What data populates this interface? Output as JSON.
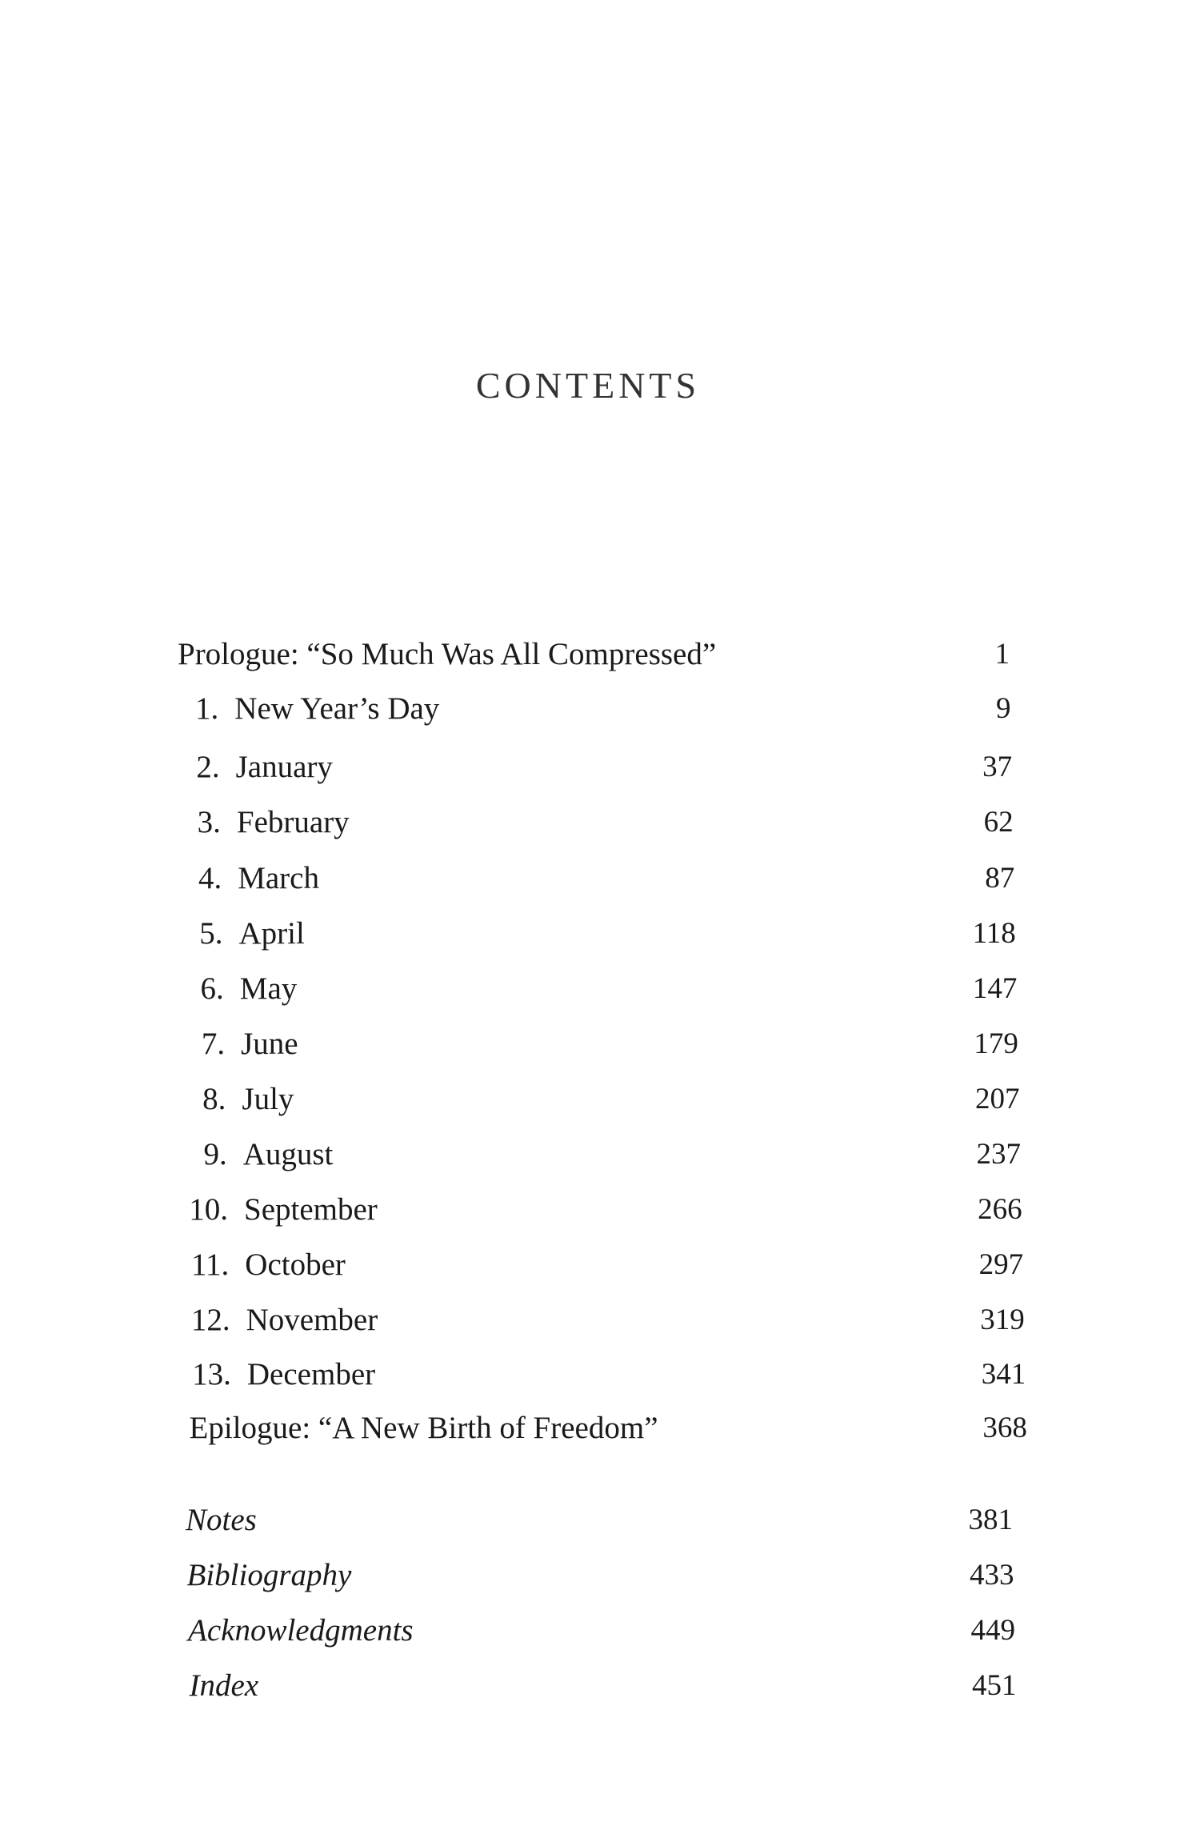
{
  "title": "CONTENTS",
  "entries": [
    {
      "label": "Prologue: “So Much Was All Compressed”",
      "page": "1"
    },
    {
      "number": "1.",
      "label": "New Year’s Day",
      "page": "9"
    },
    {
      "number": "2.",
      "label": "January",
      "page": "37"
    },
    {
      "number": "3.",
      "label": "February",
      "page": "62"
    },
    {
      "number": "4.",
      "label": "March",
      "page": "87"
    },
    {
      "number": "5.",
      "label": "April",
      "page": "118"
    },
    {
      "number": "6.",
      "label": "May",
      "page": "147"
    },
    {
      "number": "7.",
      "label": "June",
      "page": "179"
    },
    {
      "number": "8.",
      "label": "July",
      "page": "207"
    },
    {
      "number": "9.",
      "label": "August",
      "page": "237"
    },
    {
      "number": "10.",
      "label": "September",
      "page": "266"
    },
    {
      "number": "11.",
      "label": "October",
      "page": "297"
    },
    {
      "number": "12.",
      "label": "November",
      "page": "319"
    },
    {
      "number": "13.",
      "label": "December",
      "page": "341"
    },
    {
      "label": "Epilogue: “A New Birth of Freedom”",
      "page": "368"
    }
  ],
  "back_matter": [
    {
      "label": "Notes",
      "page": "381"
    },
    {
      "label": "Bibliography",
      "page": "433"
    },
    {
      "label": "Acknowledgments",
      "page": "449"
    },
    {
      "label": "Index",
      "page": "451"
    }
  ]
}
